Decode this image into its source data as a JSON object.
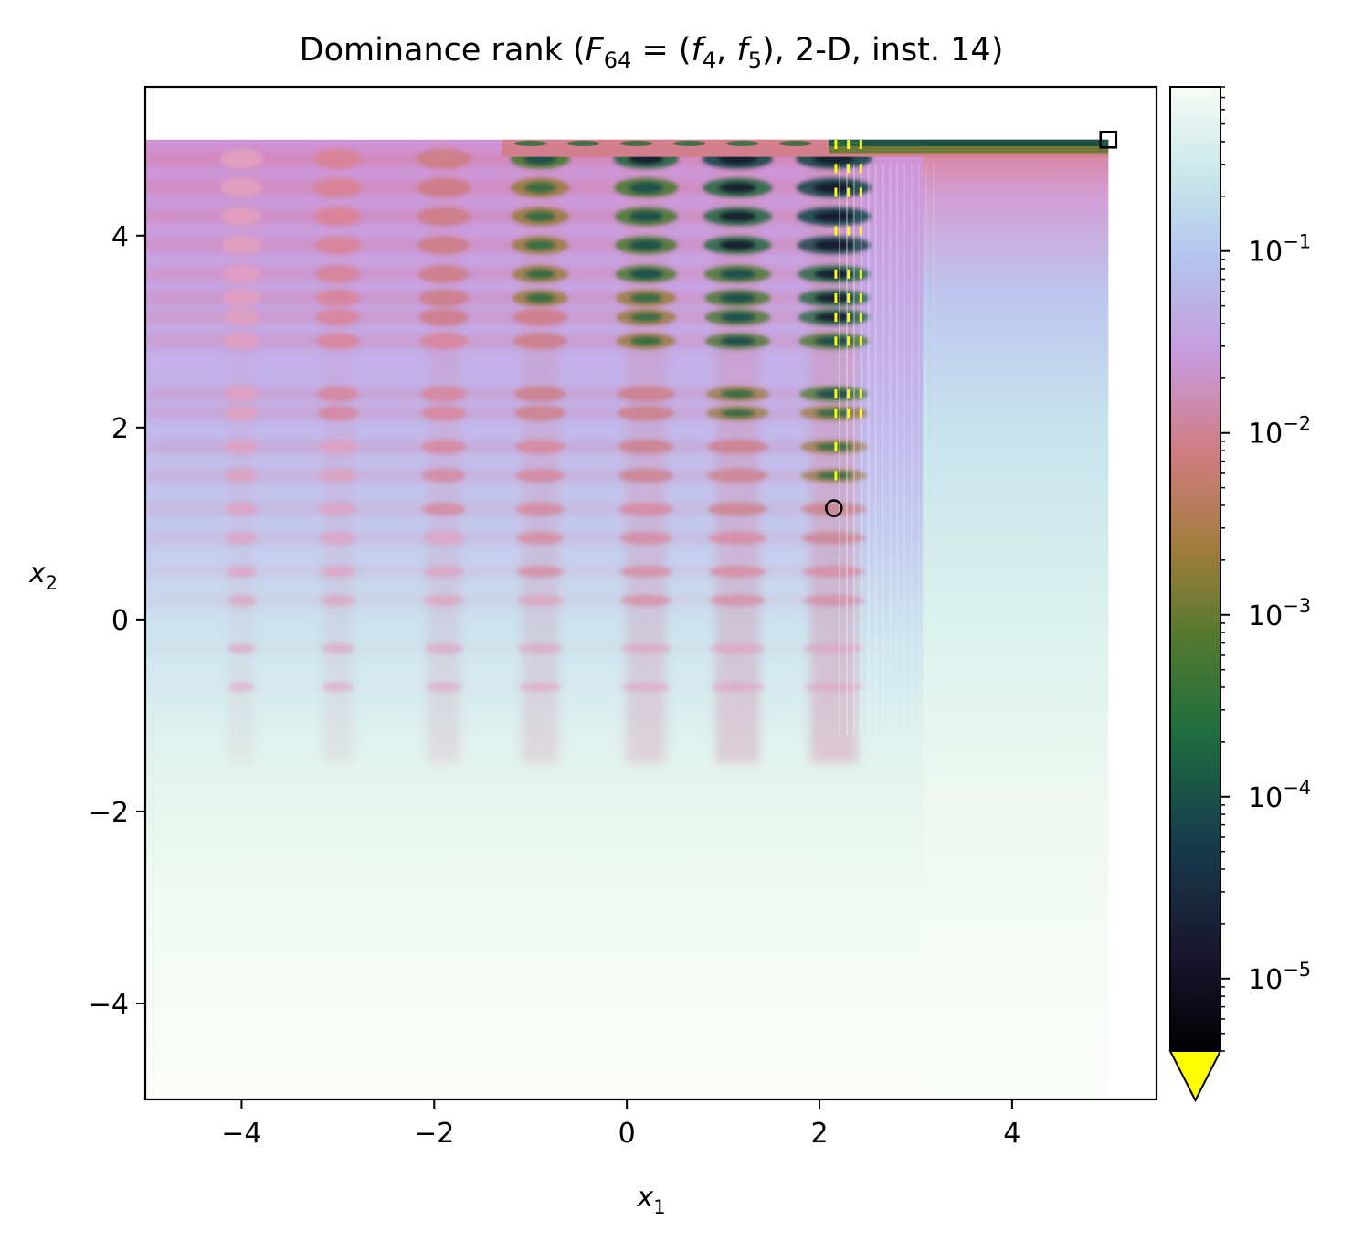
{
  "chart_data": {
    "type": "heatmap",
    "title": {
      "prefix": "Dominance rank (",
      "F": "F",
      "F_sub": "64",
      "eq": " = (",
      "f1": "f",
      "f1_sub": "4",
      "comma": ", ",
      "f2": "f",
      "f2_sub": "5",
      "suffix": "), 2-D, inst. 14)"
    },
    "xlabel": {
      "var": "x",
      "sub": "1"
    },
    "ylabel": {
      "var": "x",
      "sub": "2"
    },
    "xlim": [
      -5,
      5.5
    ],
    "ylim": [
      -5,
      5.55
    ],
    "x_ticks": [
      -4,
      -2,
      0,
      2,
      4
    ],
    "y_ticks": [
      -4,
      -2,
      0,
      2,
      4
    ],
    "x_tick_labels": [
      "−4",
      "−2",
      "0",
      "2",
      "4"
    ],
    "y_tick_labels": [
      "−4",
      "−2",
      "0",
      "2",
      "4"
    ],
    "data_extent": {
      "x": [
        -5,
        5
      ],
      "y": [
        -5,
        5
      ]
    },
    "vertical_bands_x": [
      -4.0,
      -3.0,
      -1.9,
      -0.9,
      0.2,
      1.15,
      2.15
    ],
    "horizontal_bands_y": [
      4.8,
      4.5,
      4.2,
      3.9,
      3.6,
      3.35,
      3.15,
      2.9,
      2.35,
      2.15,
      1.8,
      1.5,
      1.15,
      0.85,
      0.5,
      0.2,
      -0.3,
      -0.7
    ],
    "markers": [
      {
        "shape": "square",
        "x": 5.0,
        "y": 5.0
      },
      {
        "shape": "circle",
        "x": 2.15,
        "y": 1.16
      }
    ],
    "colorbar": {
      "scale": "log",
      "colormap": "cubehelix",
      "vmin": 4e-06,
      "vmax": 0.8,
      "extend": "min",
      "under_color": "#ffff00",
      "ticks": [
        {
          "value": 1e-05,
          "base": "10",
          "exp": "−5"
        },
        {
          "value": 0.0001,
          "base": "10",
          "exp": "−4"
        },
        {
          "value": 0.001,
          "base": "10",
          "exp": "−3"
        },
        {
          "value": 0.01,
          "base": "10",
          "exp": "−2"
        },
        {
          "value": 0.1,
          "base": "10",
          "exp": "−1"
        }
      ]
    }
  }
}
